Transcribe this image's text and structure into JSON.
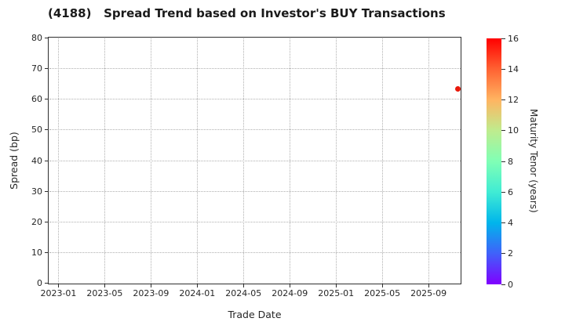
{
  "chart_data": {
    "type": "scatter",
    "title": "(4188)   Spread Trend based on Investor's BUY Transactions",
    "xlabel": "Trade Date",
    "ylabel": "Spread (bp)",
    "xlim_months_from_2023_01": [
      -0.81,
      34.74
    ],
    "ylim": [
      0,
      80
    ],
    "x_ticks": [
      {
        "label": "2023-01",
        "month": 0
      },
      {
        "label": "2023-05",
        "month": 4
      },
      {
        "label": "2023-09",
        "month": 8
      },
      {
        "label": "2024-01",
        "month": 12
      },
      {
        "label": "2024-05",
        "month": 16
      },
      {
        "label": "2024-09",
        "month": 20
      },
      {
        "label": "2025-01",
        "month": 24
      },
      {
        "label": "2025-05",
        "month": 28
      },
      {
        "label": "2025-09",
        "month": 32
      }
    ],
    "y_ticks": [
      0,
      10,
      20,
      30,
      40,
      50,
      60,
      70,
      80
    ],
    "grid": {
      "show": true,
      "style": "dotted",
      "color": "#b0b0b0"
    },
    "points": [
      {
        "trade_date": "2025-11",
        "month_offset": 34.57,
        "spread_bp": 63.3,
        "maturity_tenor_years": 15.9,
        "color": "#e8190b"
      }
    ],
    "colorbar": {
      "label": "Maturity Tenor (years)",
      "range": [
        0,
        16
      ],
      "ticks": [
        0,
        2,
        4,
        6,
        8,
        10,
        12,
        14,
        16
      ],
      "colormap": "rainbow",
      "gradient_stops_bottom_to_top": [
        "#8000ff",
        "#4061fa",
        "#00b5eb",
        "#40ecd4",
        "#80ffb5",
        "#bfec8e",
        "#ffb461",
        "#ff6232",
        "#ff0000"
      ]
    }
  },
  "colors": {
    "spine": "#2e2e2e",
    "text": "#262626",
    "title_text": "#1a1a1a",
    "grid": "#b0b0b0",
    "background": "#ffffff"
  }
}
